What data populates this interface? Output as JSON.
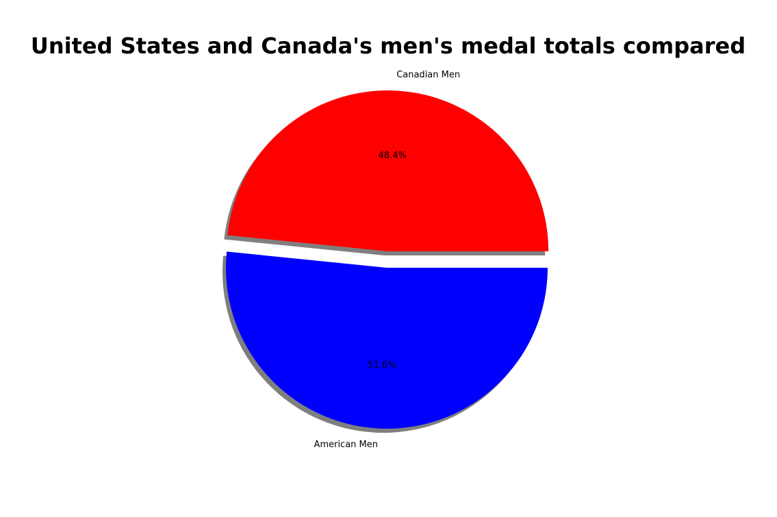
{
  "chart_data": {
    "type": "pie",
    "title": "United States and Canada's men's medal totals compared",
    "slices": [
      {
        "label": "Canadian Men",
        "percent": 48.4,
        "percent_label": "48.4%",
        "color": "#ff0000",
        "exploded": true
      },
      {
        "label": "American Men",
        "percent": 51.6,
        "percent_label": "51.6%",
        "color": "#0000ff",
        "exploded": false
      }
    ],
    "start_angle_deg": 0,
    "direction": "counterclockwise",
    "shadow": true,
    "legend": "none"
  }
}
